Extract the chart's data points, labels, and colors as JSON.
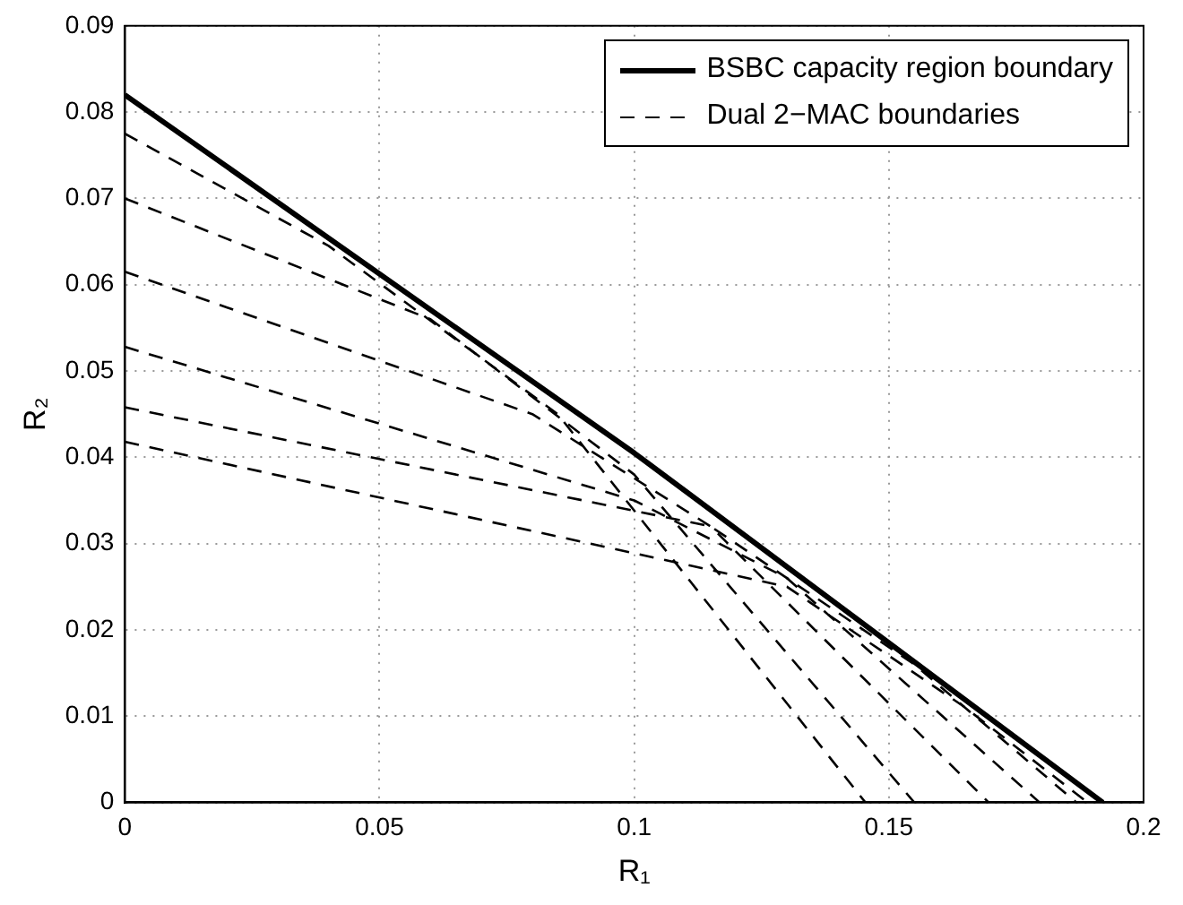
{
  "chart_data": {
    "type": "line",
    "xlabel": "R₁",
    "ylabel": "R₂",
    "xlim": [
      0,
      0.2
    ],
    "xticks": [
      0,
      0.05,
      0.1,
      0.15,
      0.2
    ],
    "ylim": [
      0,
      0.09
    ],
    "yticks": [
      0,
      0.01,
      0.02,
      0.03,
      0.04,
      0.05,
      0.06,
      0.07,
      0.08,
      0.09
    ],
    "grid": true,
    "legend": "top right",
    "marker": "none",
    "series": [
      {
        "name": "BSBC capacity region boundary",
        "color": "#000000",
        "line_style": "solid",
        "x": [
          0,
          0.1,
          0.192
        ],
        "values": [
          0.082,
          0.0405,
          0
        ]
      },
      {
        "name": "Dual 2−MAC boundaries",
        "color": "#000000",
        "line_style": "dashed",
        "x": [
          0,
          0.04,
          0.085,
          0.1454
        ],
        "values": [
          0.0775,
          0.0645,
          0.045,
          0
        ]
      },
      {
        "color": "#000000",
        "line_style": "dashed",
        "x": [
          0,
          0.06,
          0.1,
          0.155
        ],
        "values": [
          0.07,
          0.056,
          0.038,
          0
        ]
      },
      {
        "color": "#000000",
        "line_style": "dashed",
        "x": [
          0,
          0.08,
          0.115,
          0.1696
        ],
        "values": [
          0.0615,
          0.045,
          0.032,
          0
        ]
      },
      {
        "color": "#000000",
        "line_style": "dashed",
        "x": [
          0,
          0.1,
          0.13,
          0.1796
        ],
        "values": [
          0.0528,
          0.035,
          0.026,
          0
        ]
      },
      {
        "color": "#000000",
        "line_style": "dashed",
        "x": [
          0,
          0.115,
          0.155,
          0.1868
        ],
        "values": [
          0.0458,
          0.032,
          0.016,
          0
        ]
      },
      {
        "color": "#000000",
        "line_style": "dashed",
        "x": [
          0,
          0.13,
          0.165,
          0.189
        ],
        "values": [
          0.0418,
          0.025,
          0.011,
          0
        ]
      }
    ]
  }
}
